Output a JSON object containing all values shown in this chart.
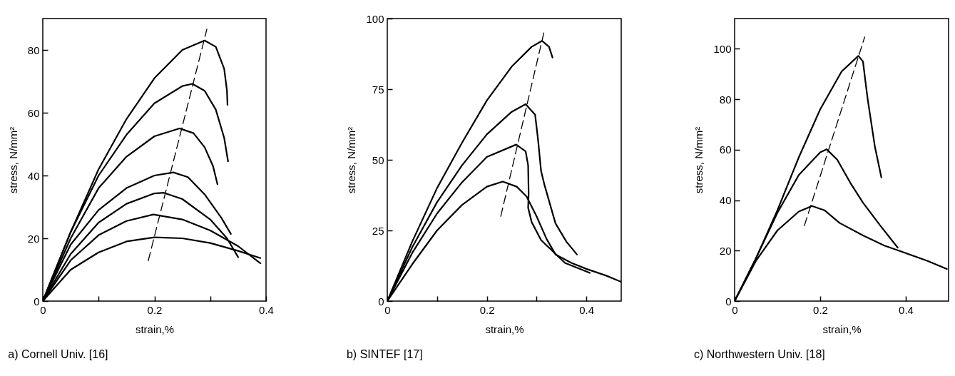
{
  "chart_data": [
    {
      "type": "line",
      "title": "a) Cornell Univ. [16]",
      "xlabel": "strain,%",
      "ylabel": "stress, N/mm²",
      "xlim": [
        0,
        0.4
      ],
      "ylim": [
        0,
        90
      ],
      "xticks": [
        0,
        {
          "value": 0.1,
          "label": null
        },
        0.2,
        {
          "value": 0.3,
          "label": null
        },
        0.4
      ],
      "yticks": [
        0,
        20,
        40,
        60,
        80
      ],
      "series": [
        {
          "color": "#000000",
          "x": [
            0,
            0.05,
            0.1,
            0.15,
            0.2,
            0.25,
            0.29,
            0.31,
            0.325,
            0.33,
            0.331
          ],
          "values": [
            0,
            22,
            42,
            58,
            71,
            80,
            83,
            81,
            74,
            67,
            62.5
          ]
        },
        {
          "color": "#000000",
          "x": [
            0,
            0.05,
            0.1,
            0.15,
            0.2,
            0.25,
            0.268,
            0.29,
            0.31,
            0.325,
            0.332
          ],
          "values": [
            0,
            22,
            40,
            53,
            63,
            68.5,
            69.2,
            67,
            61,
            52,
            44.5
          ]
        },
        {
          "color": "#000000",
          "x": [
            0,
            0.05,
            0.1,
            0.15,
            0.2,
            0.245,
            0.27,
            0.29,
            0.305,
            0.313
          ],
          "values": [
            0,
            20,
            36,
            46,
            52.5,
            55,
            53.5,
            49,
            43,
            37.2
          ]
        },
        {
          "color": "#000000",
          "x": [
            0,
            0.05,
            0.1,
            0.15,
            0.2,
            0.234,
            0.26,
            0.29,
            0.32,
            0.337
          ],
          "values": [
            0,
            18,
            29,
            36,
            40,
            41,
            39.5,
            34,
            26.5,
            21.4
          ]
        },
        {
          "color": "#000000",
          "x": [
            0,
            0.05,
            0.1,
            0.15,
            0.2,
            0.217,
            0.25,
            0.3,
            0.33,
            0.35
          ],
          "values": [
            0,
            15,
            25,
            31,
            34.3,
            34.5,
            32.5,
            26,
            20,
            14
          ]
        },
        {
          "color": "#000000",
          "x": [
            0,
            0.05,
            0.1,
            0.15,
            0.198,
            0.25,
            0.3,
            0.35,
            0.39
          ],
          "values": [
            0,
            13,
            21,
            25.5,
            27.6,
            26,
            22.5,
            17.5,
            12
          ]
        },
        {
          "color": "#000000",
          "x": [
            0,
            0.05,
            0.1,
            0.15,
            0.2,
            0.25,
            0.3,
            0.35,
            0.39
          ],
          "values": [
            0,
            10,
            15.5,
            19,
            20.3,
            20,
            18.5,
            16,
            13.7
          ]
        },
        {
          "color": "#000000",
          "line_style": "dashed",
          "x": [
            0.189,
            0.294
          ],
          "values": [
            12.9,
            86.6
          ]
        }
      ]
    },
    {
      "type": "line",
      "title": "b) SINTEF [17]",
      "xlabel": "strain,%",
      "ylabel": "stress, N/mm²",
      "xlim": [
        0,
        0.47
      ],
      "ylim": [
        0,
        100
      ],
      "xticks": [
        0,
        {
          "value": 0.1,
          "label": null
        },
        0.2,
        {
          "value": 0.3,
          "label": null
        },
        0.4
      ],
      "yticks": [
        0,
        25,
        50,
        75,
        100
      ],
      "series": [
        {
          "color": "#000000",
          "x": [
            0,
            0.05,
            0.1,
            0.15,
            0.2,
            0.25,
            0.29,
            0.311,
            0.325,
            0.332
          ],
          "values": [
            0,
            21,
            40,
            56,
            71,
            83,
            90,
            92.1,
            90,
            86.2
          ]
        },
        {
          "color": "#000000",
          "x": [
            0,
            0.05,
            0.1,
            0.15,
            0.2,
            0.25,
            0.278,
            0.297,
            0.303,
            0.309,
            0.316,
            0.338,
            0.36,
            0.381
          ],
          "values": [
            0,
            19,
            35,
            48,
            59,
            67,
            69.7,
            66,
            57,
            46,
            41,
            27.5,
            21,
            16.5
          ]
        },
        {
          "color": "#000000",
          "x": [
            0,
            0.05,
            0.1,
            0.15,
            0.2,
            0.259,
            0.278,
            0.283,
            0.284,
            0.283,
            0.29,
            0.309,
            0.357,
            0.407
          ],
          "values": [
            0,
            17,
            31,
            42,
            51,
            55.4,
            53,
            48,
            38,
            33,
            28,
            21.6,
            13.5,
            10
          ]
        },
        {
          "color": "#000000",
          "x": [
            0,
            0.05,
            0.1,
            0.15,
            0.2,
            0.232,
            0.26,
            0.28,
            0.3,
            0.32,
            0.338,
            0.37,
            0.4,
            0.44,
            0.47
          ],
          "values": [
            0,
            13,
            25,
            34,
            40.5,
            42.3,
            40.5,
            37,
            30,
            22,
            16.5,
            13.5,
            11.4,
            9,
            6.8
          ]
        },
        {
          "color": "#000000",
          "line_style": "dashed",
          "x": [
            0.228,
            0.316
          ],
          "values": [
            30,
            96
          ]
        }
      ]
    },
    {
      "type": "line",
      "title": "c) Northwestern  Univ. [18]",
      "xlabel": "strain,%",
      "ylabel": "stress, N/mm²",
      "xlim": [
        0,
        0.5
      ],
      "ylim": [
        0,
        112
      ],
      "xticks": [
        0,
        {
          "value": 0.2,
          "label": "0.2"
        },
        0.4
      ],
      "yticks": [
        0,
        20,
        40,
        60,
        80,
        100
      ],
      "series": [
        {
          "color": "#000000",
          "x": [
            0,
            0.05,
            0.1,
            0.15,
            0.2,
            0.25,
            0.289,
            0.3,
            0.305,
            0.311,
            0.328,
            0.343
          ],
          "values": [
            0,
            17,
            36,
            57,
            76,
            91,
            97.2,
            95,
            88,
            80,
            61,
            49
          ]
        },
        {
          "color": "#000000",
          "x": [
            0,
            0.05,
            0.1,
            0.15,
            0.2,
            0.215,
            0.24,
            0.27,
            0.3,
            0.34,
            0.381
          ],
          "values": [
            0,
            17,
            35,
            50,
            59,
            60.2,
            56,
            47,
            39,
            30,
            21.2
          ]
        },
        {
          "color": "#000000",
          "x": [
            0,
            0.05,
            0.1,
            0.15,
            0.181,
            0.21,
            0.245,
            0.3,
            0.35,
            0.4,
            0.45,
            0.496
          ],
          "values": [
            0,
            16,
            28,
            35.5,
            37.7,
            36,
            31,
            26,
            22,
            19,
            16,
            12.7
          ]
        },
        {
          "color": "#000000",
          "line_style": "dashed",
          "x": [
            0.163,
            0.304
          ],
          "values": [
            29.9,
            104.7
          ]
        }
      ]
    }
  ]
}
